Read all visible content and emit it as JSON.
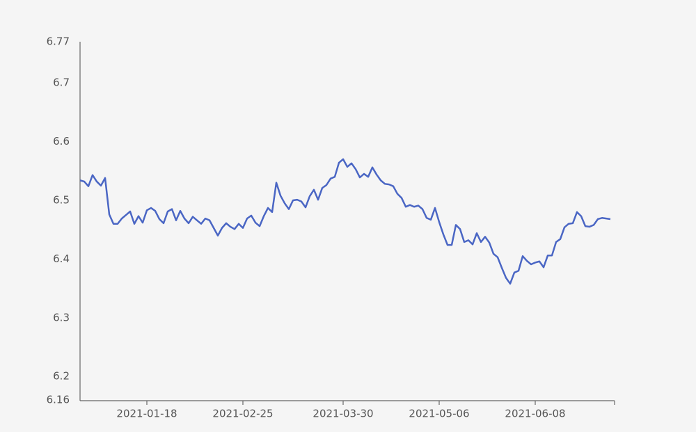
{
  "chart_data": {
    "type": "line",
    "categories": [
      null,
      null,
      null,
      null,
      null,
      null,
      null,
      null,
      null,
      null,
      null,
      null,
      null,
      null,
      null,
      null,
      "2021-01-18",
      null,
      null,
      null,
      null,
      null,
      null,
      null,
      null,
      null,
      null,
      null,
      null,
      null,
      null,
      null,
      null,
      null,
      null,
      null,
      null,
      null,
      null,
      "2021-02-25",
      null,
      null,
      null,
      null,
      null,
      null,
      null,
      null,
      null,
      null,
      null,
      null,
      null,
      null,
      null,
      null,
      null,
      null,
      null,
      null,
      null,
      null,
      null,
      "2021-03-30",
      null,
      null,
      null,
      null,
      null,
      null,
      null,
      null,
      null,
      null,
      null,
      null,
      null,
      null,
      null,
      null,
      null,
      null,
      null,
      null,
      null,
      null,
      "2021-05-06",
      null,
      null,
      null,
      null,
      null,
      null,
      null,
      null,
      null,
      null,
      null,
      null,
      null,
      null,
      null,
      null,
      null,
      null,
      null,
      null,
      null,
      null,
      "2021-06-08",
      null,
      null,
      null,
      null,
      null,
      null,
      null,
      null,
      null,
      null,
      null,
      null,
      null,
      null,
      null,
      null,
      null,
      null
    ],
    "series": [
      {
        "color": "#4a66c4",
        "values": [
          6.534,
          6.532,
          6.524,
          6.543,
          6.532,
          6.525,
          6.538,
          6.476,
          6.46,
          6.46,
          6.469,
          6.475,
          6.481,
          6.46,
          6.473,
          6.462,
          6.483,
          6.487,
          6.482,
          6.468,
          6.461,
          6.481,
          6.485,
          6.466,
          6.482,
          6.469,
          6.461,
          6.472,
          6.466,
          6.46,
          6.469,
          6.466,
          6.453,
          6.44,
          6.453,
          6.461,
          6.455,
          6.451,
          6.46,
          6.453,
          6.469,
          6.474,
          6.462,
          6.456,
          6.473,
          6.487,
          6.48,
          6.53,
          6.508,
          6.495,
          6.485,
          6.5,
          6.501,
          6.498,
          6.488,
          6.507,
          6.518,
          6.501,
          6.521,
          6.526,
          6.537,
          6.54,
          6.564,
          6.57,
          6.557,
          6.563,
          6.553,
          6.539,
          6.545,
          6.54,
          6.556,
          6.544,
          6.534,
          6.528,
          6.527,
          6.524,
          6.511,
          6.504,
          6.489,
          6.492,
          6.489,
          6.491,
          6.485,
          6.47,
          6.467,
          6.487,
          6.463,
          6.442,
          6.424,
          6.424,
          6.458,
          6.451,
          6.429,
          6.432,
          6.425,
          6.444,
          6.429,
          6.438,
          6.428,
          6.409,
          6.403,
          6.385,
          6.368,
          6.358,
          6.377,
          6.38,
          6.405,
          6.397,
          6.391,
          6.394,
          6.396,
          6.386,
          6.406,
          6.406,
          6.429,
          6.434,
          6.454,
          6.46,
          6.461,
          6.48,
          6.473,
          6.456,
          6.455,
          6.458,
          6.468,
          6.47,
          6.469,
          6.468
        ]
      }
    ],
    "ylim": [
      6.16,
      6.77
    ],
    "yticks": [
      6.16,
      6.2,
      6.3,
      6.4,
      6.5,
      6.6,
      6.7,
      6.77
    ]
  }
}
